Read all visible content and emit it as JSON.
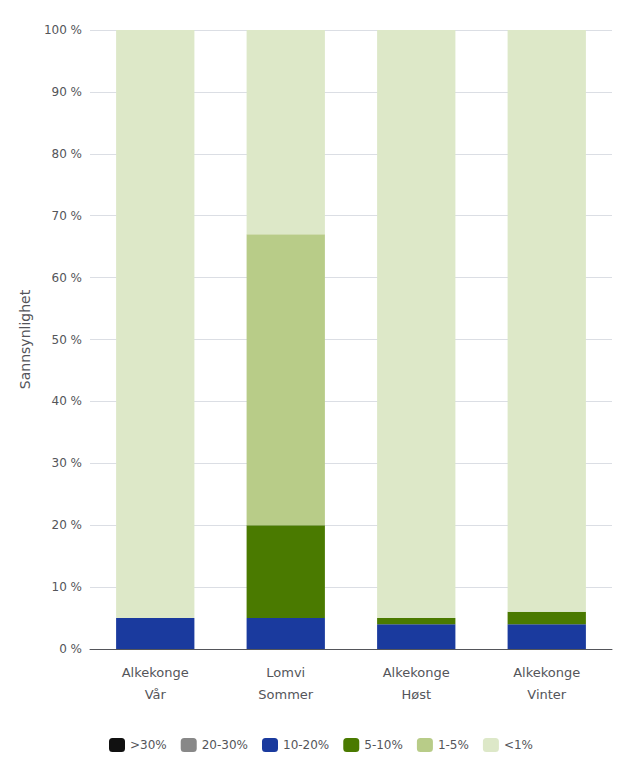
{
  "chart_data": {
    "type": "bar",
    "stacked": true,
    "grid": true,
    "legend": "bottom",
    "ylabel": "Sannsynlighet",
    "categories": [
      [
        "Alkekonge",
        "Vår"
      ],
      [
        "Lomvi",
        "Sommer"
      ],
      [
        "Alkekonge",
        "Høst"
      ],
      [
        "Alkekonge",
        "Vinter"
      ]
    ],
    "series": [
      {
        "name": ">30%",
        "color": "#111111",
        "values": [
          0,
          0,
          0,
          0
        ]
      },
      {
        "name": "20-30%",
        "color": "#888888",
        "values": [
          0,
          0,
          0,
          0
        ]
      },
      {
        "name": "10-20%",
        "color": "#1a3a9e",
        "values": [
          5,
          5,
          4,
          4
        ]
      },
      {
        "name": "5-10%",
        "color": "#4a7a00",
        "values": [
          0,
          15,
          1,
          2
        ]
      },
      {
        "name": "1-5%",
        "color": "#b8cc88",
        "values": [
          0,
          47,
          0,
          0
        ]
      },
      {
        "name": "<1%",
        "color": "#dde8c8",
        "values": [
          95,
          33,
          95,
          94
        ]
      }
    ],
    "ylim": [
      0,
      100
    ],
    "yticks": [
      {
        "value": 0,
        "label": "0 %"
      },
      {
        "value": 10,
        "label": "10 %"
      },
      {
        "value": 20,
        "label": "20 %"
      },
      {
        "value": 30,
        "label": "30 %"
      },
      {
        "value": 40,
        "label": "40 %"
      },
      {
        "value": 50,
        "label": "50 %"
      },
      {
        "value": 60,
        "label": "60 %"
      },
      {
        "value": 70,
        "label": "70 %"
      },
      {
        "value": 80,
        "label": "80 %"
      },
      {
        "value": 90,
        "label": "90 %"
      },
      {
        "value": 100,
        "label": "100 %"
      }
    ]
  }
}
